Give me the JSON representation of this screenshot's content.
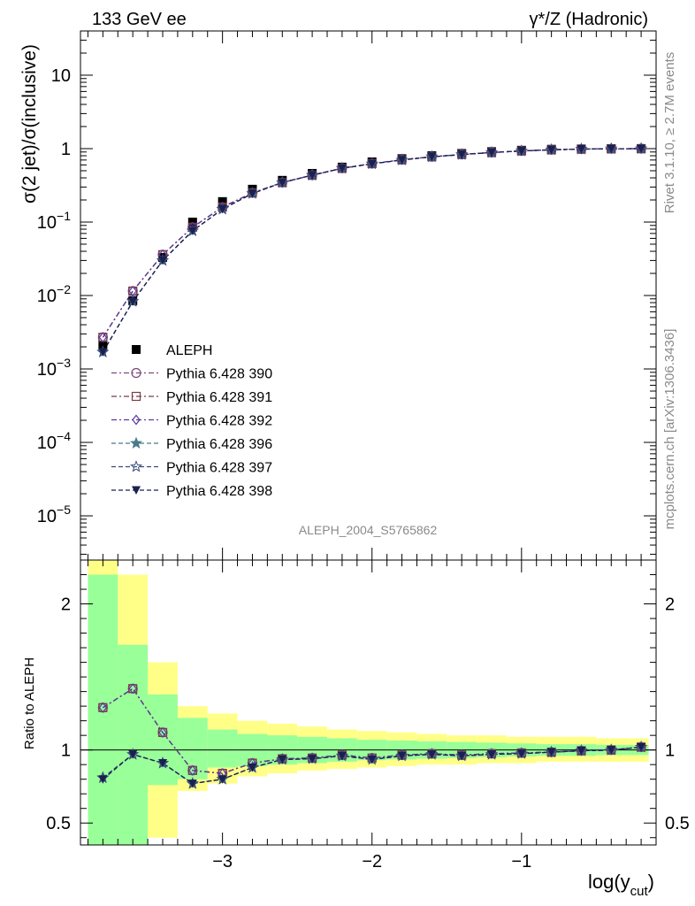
{
  "header": {
    "left": "133 GeV ee",
    "right": "γ*/Z (Hadronic)"
  },
  "side_labels": {
    "rivet": "Rivet 3.1.10, ≥ 2.7M events",
    "mcplots": "mcplots.cern.ch [arXiv:1306.3436]"
  },
  "analysis_tag": "ALEPH_2004_S5765862",
  "chart_data": [
    {
      "type": "scatter",
      "panel": "main",
      "ylabel": "σ(2 jet)/σ(inclusive)",
      "yscale": "log",
      "xlim": [
        -3.95,
        -0.1
      ],
      "ylim": [
        2.5e-06,
        40
      ],
      "y_ticks": [
        {
          "base": "10",
          "exp": "−5",
          "value": 1e-05
        },
        {
          "base": "10",
          "exp": "−4",
          "value": 0.0001
        },
        {
          "base": "10",
          "exp": "−3",
          "value": 0.001
        },
        {
          "base": "10",
          "exp": "−2",
          "value": 0.01
        },
        {
          "base": "10",
          "exp": "−1",
          "value": 0.1
        },
        {
          "base": "1",
          "exp": "",
          "value": 1
        },
        {
          "base": "10",
          "exp": "",
          "value": 10
        }
      ],
      "legend_position": "lower-left",
      "x": [
        -3.8,
        -3.6,
        -3.4,
        -3.2,
        -3.0,
        -2.8,
        -2.6,
        -2.4,
        -2.2,
        -2.0,
        -1.8,
        -1.6,
        -1.4,
        -1.2,
        -1.0,
        -0.8,
        -0.6,
        -0.4,
        -0.2
      ],
      "series": [
        {
          "name": "ALEPH",
          "marker": "square-filled",
          "color": "#000000",
          "values": [
            0.0021,
            0.0085,
            0.033,
            0.1,
            0.19,
            0.28,
            0.37,
            0.46,
            0.56,
            0.66,
            0.73,
            0.8,
            0.86,
            0.91,
            0.95,
            0.98,
            0.99,
            1.0,
            1.0
          ]
        },
        {
          "name": "Pythia 6.428 390",
          "marker": "circle-open",
          "color": "#7a4a7a",
          "dash": "6,3,2,3",
          "values": [
            0.0027,
            0.0115,
            0.036,
            0.085,
            0.16,
            0.25,
            0.345,
            0.435,
            0.54,
            0.625,
            0.705,
            0.775,
            0.835,
            0.885,
            0.93,
            0.965,
            0.985,
            0.995,
            1.0
          ]
        },
        {
          "name": "Pythia 6.428 391",
          "marker": "square-open",
          "color": "#7a3a4a",
          "dash": "6,3,2,3",
          "values": [
            0.0027,
            0.0115,
            0.036,
            0.085,
            0.16,
            0.25,
            0.345,
            0.435,
            0.54,
            0.625,
            0.705,
            0.775,
            0.835,
            0.885,
            0.93,
            0.965,
            0.985,
            0.995,
            1.0
          ]
        },
        {
          "name": "Pythia 6.428 392",
          "marker": "diamond-open",
          "color": "#5a3a9a",
          "dash": "6,3,2,3",
          "values": [
            0.0027,
            0.0115,
            0.036,
            0.085,
            0.16,
            0.25,
            0.345,
            0.435,
            0.54,
            0.625,
            0.705,
            0.775,
            0.835,
            0.885,
            0.93,
            0.965,
            0.985,
            0.995,
            1.0
          ]
        },
        {
          "name": "Pythia 6.428 396",
          "marker": "star-filled",
          "color": "#4a7a8a",
          "dash": "5,3",
          "values": [
            0.0017,
            0.0083,
            0.03,
            0.076,
            0.15,
            0.245,
            0.345,
            0.435,
            0.54,
            0.62,
            0.7,
            0.775,
            0.83,
            0.885,
            0.93,
            0.965,
            0.985,
            0.995,
            1.0
          ]
        },
        {
          "name": "Pythia 6.428 397",
          "marker": "star-open",
          "color": "#3a4a7a",
          "dash": "5,3",
          "values": [
            0.0017,
            0.0083,
            0.03,
            0.076,
            0.15,
            0.245,
            0.345,
            0.435,
            0.54,
            0.62,
            0.7,
            0.775,
            0.83,
            0.885,
            0.93,
            0.965,
            0.985,
            0.995,
            1.0
          ]
        },
        {
          "name": "Pythia 6.428 398",
          "marker": "triangle-down-filled",
          "color": "#1a2050",
          "dash": "5,3",
          "values": [
            0.0017,
            0.0083,
            0.03,
            0.076,
            0.15,
            0.245,
            0.345,
            0.435,
            0.54,
            0.62,
            0.7,
            0.775,
            0.83,
            0.885,
            0.93,
            0.965,
            0.985,
            0.995,
            1.0
          ]
        }
      ]
    },
    {
      "type": "line",
      "panel": "ratio",
      "xlabel": "log(y",
      "xlabel_sub": "cut",
      "xlabel_close": ")",
      "ylabel": "Ratio to ALEPH",
      "xlim": [
        -3.95,
        -0.1
      ],
      "ylim": [
        0.35,
        2.3
      ],
      "x_ticks": [
        {
          "label": "−3",
          "value": -3
        },
        {
          "label": "−2",
          "value": -2
        },
        {
          "label": "−1",
          "value": -1
        }
      ],
      "y_ticks": [
        {
          "label": "0.5",
          "value": 0.5
        },
        {
          "label": "1",
          "value": 1
        },
        {
          "label": "2",
          "value": 2
        }
      ],
      "bin_edges": [
        -3.9,
        -3.7,
        -3.5,
        -3.3,
        -3.1,
        -2.9,
        -2.7,
        -2.5,
        -2.3,
        -2.1,
        -1.9,
        -1.7,
        -1.5,
        -1.3,
        -1.1,
        -0.9,
        -0.7,
        -0.5,
        -0.3,
        -0.15
      ],
      "band_inner": [
        [
          0.35,
          2.2
        ],
        [
          0.35,
          1.72
        ],
        [
          0.76,
          1.38
        ],
        [
          0.8,
          1.22
        ],
        [
          0.88,
          1.14
        ],
        [
          0.89,
          1.11
        ],
        [
          0.9,
          1.1
        ],
        [
          0.91,
          1.09
        ],
        [
          0.92,
          1.08
        ],
        [
          0.93,
          1.07
        ],
        [
          0.935,
          1.065
        ],
        [
          0.94,
          1.06
        ],
        [
          0.945,
          1.055
        ],
        [
          0.95,
          1.05
        ],
        [
          0.955,
          1.045
        ],
        [
          0.96,
          1.04
        ],
        [
          0.96,
          1.04
        ],
        [
          0.965,
          1.035
        ],
        [
          0.965,
          1.035
        ]
      ],
      "band_outer": [
        [
          0.35,
          2.3
        ],
        [
          0.35,
          2.2
        ],
        [
          0.4,
          1.6
        ],
        [
          0.72,
          1.3
        ],
        [
          0.77,
          1.25
        ],
        [
          0.82,
          1.2
        ],
        [
          0.84,
          1.18
        ],
        [
          0.86,
          1.16
        ],
        [
          0.87,
          1.14
        ],
        [
          0.88,
          1.13
        ],
        [
          0.89,
          1.12
        ],
        [
          0.9,
          1.11
        ],
        [
          0.9,
          1.1
        ],
        [
          0.91,
          1.1
        ],
        [
          0.91,
          1.09
        ],
        [
          0.92,
          1.09
        ],
        [
          0.92,
          1.09
        ],
        [
          0.92,
          1.08
        ],
        [
          0.92,
          1.08
        ]
      ],
      "band_colors": {
        "inner": "#99ff99",
        "outer": "#ffff88"
      },
      "x": [
        -3.8,
        -3.6,
        -3.4,
        -3.2,
        -3.0,
        -2.8,
        -2.6,
        -2.4,
        -2.2,
        -2.0,
        -1.8,
        -1.6,
        -1.4,
        -1.2,
        -1.0,
        -0.8,
        -0.6,
        -0.4,
        -0.2
      ],
      "series": [
        {
          "name": "Pythia 6.428 390",
          "marker": "circle-open",
          "color": "#7a4a7a",
          "dash": "6,3,2,3",
          "values": [
            1.29,
            1.42,
            1.12,
            0.86,
            0.84,
            0.91,
            0.94,
            0.945,
            0.965,
            0.945,
            0.965,
            0.975,
            0.965,
            0.975,
            0.98,
            0.985,
            0.995,
            1.0,
            1.02
          ]
        },
        {
          "name": "Pythia 6.428 391",
          "marker": "square-open",
          "color": "#7a3a4a",
          "dash": "6,3,2,3",
          "values": [
            1.29,
            1.42,
            1.12,
            0.86,
            0.84,
            0.91,
            0.94,
            0.945,
            0.965,
            0.945,
            0.965,
            0.975,
            0.965,
            0.975,
            0.98,
            0.985,
            0.995,
            1.0,
            1.02
          ]
        },
        {
          "name": "Pythia 6.428 392",
          "marker": "diamond-open",
          "color": "#5a3a9a",
          "dash": "6,3,2,3",
          "values": [
            1.29,
            1.42,
            1.12,
            0.86,
            0.84,
            0.91,
            0.94,
            0.945,
            0.965,
            0.945,
            0.965,
            0.975,
            0.965,
            0.975,
            0.98,
            0.985,
            0.995,
            1.0,
            1.02
          ]
        },
        {
          "name": "Pythia 6.428 396",
          "marker": "star-filled",
          "color": "#4a7a8a",
          "dash": "5,3",
          "values": [
            0.81,
            0.97,
            0.91,
            0.77,
            0.8,
            0.88,
            0.935,
            0.94,
            0.96,
            0.935,
            0.96,
            0.97,
            0.96,
            0.97,
            0.975,
            0.985,
            0.995,
            1.0,
            1.02
          ]
        },
        {
          "name": "Pythia 6.428 397",
          "marker": "star-open",
          "color": "#3a4a7a",
          "dash": "5,3",
          "values": [
            0.81,
            0.97,
            0.91,
            0.77,
            0.8,
            0.88,
            0.935,
            0.94,
            0.96,
            0.935,
            0.96,
            0.97,
            0.96,
            0.97,
            0.975,
            0.985,
            0.995,
            1.0,
            1.02
          ]
        },
        {
          "name": "Pythia 6.428 398",
          "marker": "triangle-down-filled",
          "color": "#1a2050",
          "dash": "5,3",
          "values": [
            0.8,
            0.97,
            0.91,
            0.77,
            0.8,
            0.88,
            0.935,
            0.94,
            0.96,
            0.935,
            0.96,
            0.97,
            0.96,
            0.97,
            0.975,
            0.985,
            0.995,
            1.0,
            1.02
          ]
        }
      ]
    }
  ]
}
